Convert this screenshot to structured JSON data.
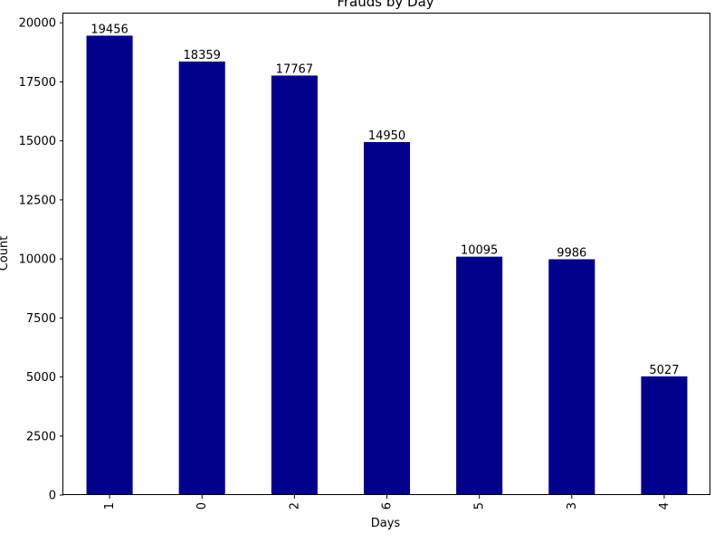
{
  "chart_data": {
    "type": "bar",
    "title": "Frauds by Day",
    "xlabel": "Days",
    "ylabel": "Count",
    "categories": [
      "1",
      "0",
      "2",
      "6",
      "5",
      "3",
      "4"
    ],
    "values": [
      19456,
      18359,
      17767,
      14950,
      10095,
      9986,
      5027
    ],
    "ylim": [
      0,
      20430
    ],
    "yticks": [
      0,
      2500,
      5000,
      7500,
      10000,
      12500,
      15000,
      17500,
      20000
    ],
    "bar_color": "#00008b",
    "grid": false,
    "data_labels": true
  }
}
